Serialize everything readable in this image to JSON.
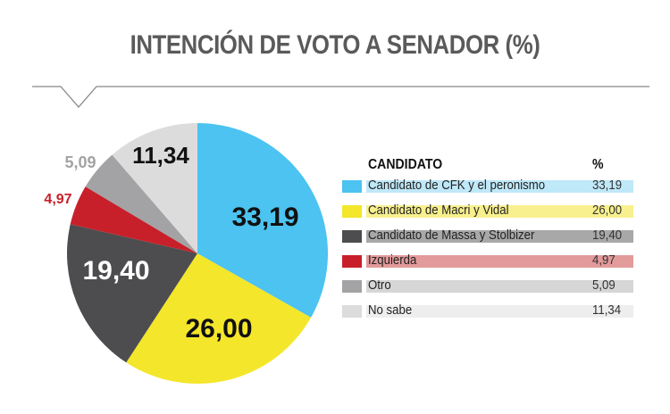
{
  "chart_data": {
    "type": "pie",
    "title": "INTENCIÓN DE VOTO A SENADOR (%)",
    "legend_header": {
      "name": "CANDIDATO",
      "value": "%"
    },
    "legend_placement": "right",
    "slices": [
      {
        "name": "Candidato de CFK y el peronismo",
        "value": 33.19,
        "label": "33,19",
        "color": "#4cc3f0",
        "tint": "#bfe8f8",
        "label_color": "#111111"
      },
      {
        "name": "Candidato de Macri y Vidal",
        "value": 26.0,
        "label": "26,00",
        "color": "#f4e62a",
        "tint": "#f8f08e",
        "label_color": "#111111"
      },
      {
        "name": "Candidato de Massa y Stolbizer",
        "value": 19.4,
        "label": "19,40",
        "color": "#4d4d4f",
        "tint": "#a8a8a8",
        "label_color": "#ffffff"
      },
      {
        "name": "Izquierda",
        "value": 4.97,
        "label": "4,97",
        "color": "#c8202a",
        "tint": "#e39a9a",
        "label_color": "#c8202a"
      },
      {
        "name": "Otro",
        "value": 5.09,
        "label": "5,09",
        "color": "#a3a3a5",
        "tint": "#d6d6d6",
        "label_color": "#a3a3a5"
      },
      {
        "name": "No sabe",
        "value": 11.34,
        "label": "11,34",
        "color": "#dcdcdc",
        "tint": "#eeeeee",
        "label_color": "#111111"
      }
    ]
  }
}
